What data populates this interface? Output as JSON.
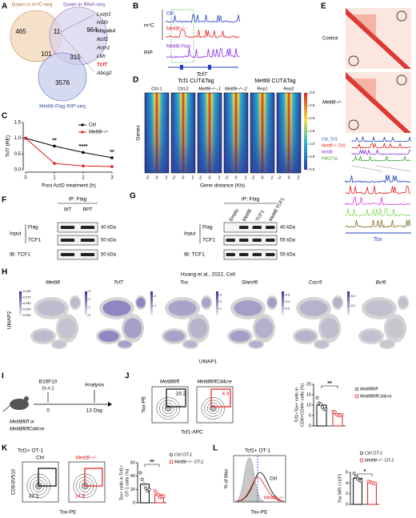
{
  "a": {
    "letter": "A",
    "set1": "Down in m⁵C-seq",
    "set2": "Down in RNA-seq",
    "set3": "Mettl8-Flag RIP-seq",
    "counts": [
      465,
      964,
      11,
      101,
      315,
      3576
    ],
    "genes": [
      "Luzp1",
      "H1f0",
      "Map4k4",
      "Ikzf2",
      "Actn1",
      "Lbh",
      "Tcf7",
      "Abcg2"
    ]
  },
  "b": {
    "letter": "B",
    "ctrl": "Ctrl",
    "ko": "Mettl8−/−",
    "m5c": "m⁵C",
    "rip": "RIP",
    "flag": "Mettl8-Flag",
    "gene": "Tcf7"
  },
  "c": {
    "letter": "C",
    "type": "line",
    "ylabel": "Tcf7 (RE)",
    "xlabel": "Post ActD treatment (h)",
    "x": [
      0,
      1,
      2,
      3
    ],
    "xlim": [
      0,
      3
    ],
    "xticks": [
      0,
      1,
      2,
      3
    ],
    "ylim": [
      0,
      1.5
    ],
    "yticks": [
      {
        "value": 0,
        "label": "0.0"
      },
      0.5,
      {
        "value": 1,
        "label": "1.0"
      },
      1.5
    ],
    "series": [
      {
        "name": "Ctrl",
        "color": "#000000",
        "values": [
          1,
          0.75,
          0.55,
          0.38
        ]
      },
      {
        "name": "Mettl8−/−",
        "color": "#e41a1c",
        "values": [
          1,
          0.2,
          0.12,
          0.1
        ]
      }
    ],
    "annotations": [
      "**",
      "****",
      "**"
    ]
  },
  "d": {
    "letter": "D",
    "group1": "Tcf1 CUT&Tag",
    "group2": "Mettl8 CUT&Tag",
    "samples": [
      "Ctrl-1",
      "Ctrl-2",
      "Mettl8−/−-1",
      "Mettl8−/−-2",
      "Rep1",
      "Rep2"
    ],
    "ylabel": "Genes",
    "xlabel": "Gene distance (Kb)",
    "xticks": [
      -2,
      0,
      2
    ],
    "colorbar": {
      "lim": [
        0,
        3
      ],
      "ticks": [
        {
          "value": 0,
          "label": "0.0"
        },
        0.5,
        {
          "value": 1,
          "label": "1.0"
        },
        1.5,
        {
          "value": 2,
          "label": "2.0"
        },
        2.5,
        {
          "value": 3,
          "label": "3.0"
        }
      ]
    }
  },
  "e": {
    "letter": "E",
    "hic1": "Control",
    "hic2": "Mettl8−/−",
    "tracks": [
      "Ctrl_Tcf1",
      "Mettl8−/−Tcf1",
      "Mettl8",
      "H3K27ac"
    ],
    "gene": "Tox"
  },
  "f": {
    "letter": "F",
    "ip": "IP: Flag",
    "lanes": [
      "WT",
      "RPT"
    ],
    "input": "Input",
    "rows": [
      "Flag",
      "TCF1",
      "IB: TCF1"
    ],
    "sizes": [
      "40 kDa",
      "50 kDa",
      "50 kDa"
    ]
  },
  "g": {
    "letter": "G",
    "ip": "IP: Flag",
    "lanes": [
      "Empty",
      "Mettl8",
      "TCF1",
      "Mettl8 TCF1"
    ],
    "input": "Input",
    "rows": [
      "Flag",
      "TCF1",
      "IB: TCF1"
    ],
    "sizes": [
      "40 kDa",
      "55 kDa",
      "55 kDa"
    ]
  },
  "h": {
    "letter": "H",
    "source": "Huang et al., 2022, Cell",
    "genes": [
      "Mettl8",
      "Tcf7",
      "Tox",
      "Slamf6",
      "Cxcr5",
      "Bcl6"
    ],
    "ylabel": "UMAP2",
    "xlabel": "UMAP1",
    "scales": [
      {
        "lim": [
          0,
          0.1
        ],
        "ticks": [
          {
            "value": 0,
            "label": "0.000"
          },
          {
            "value": 0.025,
            "label": "0.025"
          },
          {
            "value": 0.05,
            "label": "0.050"
          },
          {
            "value": 0.075,
            "label": "0.075"
          },
          {
            "value": 0.1,
            "label": "0.100"
          }
        ]
      },
      {
        "lim": [
          0,
          3
        ],
        "ticks": [
          0,
          1,
          2,
          3
        ]
      },
      {
        "lim": [
          0,
          2.5
        ],
        "ticks": [
          1,
          2
        ]
      },
      {
        "lim": [
          0,
          3.5
        ],
        "ticks": [
          1,
          2,
          3
        ]
      },
      {
        "lim": [
          0,
          0.7
        ],
        "ticks": [
          0.2,
          0.4,
          0.6
        ]
      },
      {
        "lim": [
          0,
          0.25
        ],
        "ticks": [
          0.1,
          0.2
        ]
      }
    ]
  },
  "i": {
    "letter": "I",
    "tumor": "B16F10",
    "route": "(s.c.)",
    "analysis": "Analysis",
    "start": 0,
    "end": "13 Day",
    "mice1": "Mettl8fl/fl or",
    "mice2": "Mettl8fl/flCd4cre"
  },
  "j": {
    "letter": "J",
    "groups": [
      "Mettl8fl/fl",
      "Mettl8fl/flCd4cre"
    ],
    "gates": [
      16.2,
      4.9
    ],
    "flow_y": "Tox-PE",
    "flow_x": "Tcf1-APC",
    "chart": {
      "type": "bar",
      "ylabel": [
        "Tcf1+Tox+ cells in",
        "CD8+CD44+ cells (%)"
      ],
      "ylim": [
        0,
        20
      ],
      "yticks": [
        0,
        5,
        10,
        15,
        20
      ],
      "annotation": "**",
      "series": [
        {
          "name": "Mettl8fl/fl",
          "color": "#000000",
          "values": [
            10
          ],
          "points": [
            13.5,
            11,
            10.5,
            9,
            8,
            8
          ]
        },
        {
          "name": "Mettl8fl/flCd4cre",
          "color": "#e41a1c",
          "values": [
            5.8
          ],
          "points": [
            7,
            6.5,
            5.5,
            5,
            5.2,
            5.5
          ]
        }
      ]
    }
  },
  "k": {
    "letter": "K",
    "title": "Tcf1+ OT-1",
    "groups": [
      "Ctrl",
      "Mettl8−/−"
    ],
    "gates": [
      33.1,
      14.8
    ],
    "flow_y": "CD8-BV510",
    "flow_x": "Tox-PE",
    "chart": {
      "type": "bar",
      "ylabel": [
        "Tox+ cells in Tcf1+",
        "OT-1 cells (%)"
      ],
      "ylim": [
        0,
        60
      ],
      "yticks": [
        0,
        20,
        40,
        60
      ],
      "annotation": "**",
      "series": [
        {
          "name": "Ctrl OT-1",
          "color": "#000000",
          "values": [
            28
          ],
          "points": [
            45,
            35,
            28,
            22,
            18,
            20
          ]
        },
        {
          "name": "Mettl8−/− OT-1",
          "color": "#e41a1c",
          "values": [
            12
          ],
          "points": [
            18,
            15,
            12,
            8,
            9,
            10
          ]
        }
      ]
    }
  },
  "l": {
    "letter": "L",
    "title": "Tcf1+ OT-1",
    "flow_y": "% of Max",
    "flow_x": "Tox-PE",
    "ctrl": "Ctrl",
    "ko": "Mettl8−/−",
    "chart": {
      "type": "bar",
      "ylabel": [
        "Tox MFI (×10³)"
      ],
      "ylim": [
        0,
        6
      ],
      "yticks": [
        0,
        2,
        4,
        6
      ],
      "annotation": "*",
      "series": [
        {
          "name": "Ctrl OT-1",
          "color": "#000000",
          "values": [
            4.9
          ],
          "points": [
            5.8,
            5.2,
            4.8,
            4.5,
            4.4
          ]
        },
        {
          "name": "Mettl8−/− OT-1",
          "color": "#e41a1c",
          "values": [
            4.1
          ],
          "points": [
            4.3,
            4.2,
            4,
            4,
            3.9
          ]
        }
      ]
    }
  }
}
